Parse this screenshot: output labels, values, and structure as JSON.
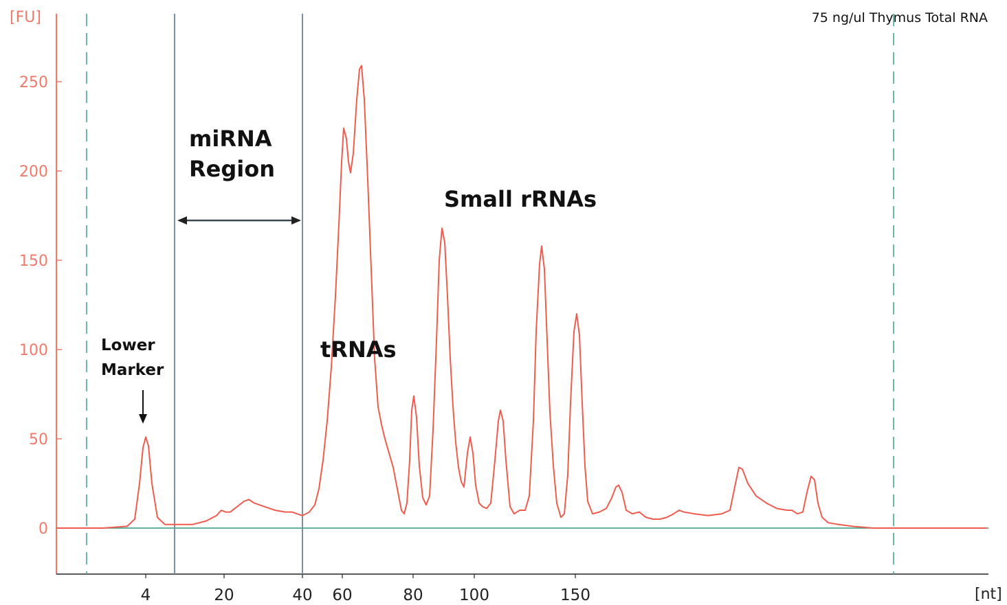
{
  "chart_data": {
    "type": "line",
    "title": "75 ng/ul Thymus Total RNA",
    "ylabel": "[FU]",
    "xlabel": "[nt]",
    "ylim": [
      -25,
      285
    ],
    "yticks": [
      0,
      50,
      100,
      150,
      200,
      250
    ],
    "xticks": [
      {
        "label": "4",
        "pos": 212
      },
      {
        "label": "20",
        "pos": 326
      },
      {
        "label": "40",
        "pos": 440
      },
      {
        "label": "60",
        "pos": 498
      },
      {
        "label": "80",
        "pos": 601
      },
      {
        "label": "100",
        "pos": 690
      },
      {
        "label": "150",
        "pos": 837
      }
    ],
    "annotations": {
      "mirna_line1": "miRNA",
      "mirna_line2": "Region",
      "small_rrnas": "Small rRNAs",
      "trnas": "tRNAs",
      "lower_marker_line1": "Lower",
      "lower_marker_line2": "Marker"
    },
    "series": [
      {
        "name": "",
        "color": "#ef5b4c",
        "points": [
          [
            82,
            0
          ],
          [
            150,
            0
          ],
          [
            185,
            1
          ],
          [
            196,
            5
          ],
          [
            203,
            25
          ],
          [
            208,
            45
          ],
          [
            212,
            51
          ],
          [
            216,
            46
          ],
          [
            221,
            25
          ],
          [
            229,
            6
          ],
          [
            240,
            2
          ],
          [
            255,
            2
          ],
          [
            280,
            2
          ],
          [
            300,
            4
          ],
          [
            315,
            7
          ],
          [
            322,
            10
          ],
          [
            328,
            9
          ],
          [
            335,
            9
          ],
          [
            345,
            12
          ],
          [
            355,
            15
          ],
          [
            362,
            16
          ],
          [
            370,
            14
          ],
          [
            385,
            12
          ],
          [
            400,
            10
          ],
          [
            415,
            9
          ],
          [
            425,
            9
          ],
          [
            432,
            8
          ],
          [
            440,
            7
          ],
          [
            450,
            9
          ],
          [
            458,
            13
          ],
          [
            464,
            22
          ],
          [
            470,
            38
          ],
          [
            476,
            60
          ],
          [
            482,
            90
          ],
          [
            488,
            130
          ],
          [
            493,
            170
          ],
          [
            497,
            205
          ],
          [
            500,
            224
          ],
          [
            504,
            218
          ],
          [
            507,
            205
          ],
          [
            510,
            199
          ],
          [
            514,
            210
          ],
          [
            519,
            240
          ],
          [
            523,
            257
          ],
          [
            526,
            259
          ],
          [
            530,
            240
          ],
          [
            535,
            195
          ],
          [
            540,
            145
          ],
          [
            545,
            95
          ],
          [
            550,
            68
          ],
          [
            555,
            58
          ],
          [
            560,
            50
          ],
          [
            566,
            42
          ],
          [
            572,
            34
          ],
          [
            578,
            22
          ],
          [
            584,
            10
          ],
          [
            588,
            8
          ],
          [
            592,
            14
          ],
          [
            596,
            38
          ],
          [
            599,
            66
          ],
          [
            602,
            74
          ],
          [
            606,
            62
          ],
          [
            610,
            35
          ],
          [
            615,
            17
          ],
          [
            620,
            13
          ],
          [
            625,
            18
          ],
          [
            630,
            55
          ],
          [
            635,
            105
          ],
          [
            639,
            150
          ],
          [
            643,
            168
          ],
          [
            647,
            160
          ],
          [
            651,
            130
          ],
          [
            655,
            95
          ],
          [
            659,
            68
          ],
          [
            663,
            48
          ],
          [
            667,
            34
          ],
          [
            671,
            26
          ],
          [
            675,
            23
          ],
          [
            680,
            42
          ],
          [
            684,
            51
          ],
          [
            688,
            42
          ],
          [
            692,
            24
          ],
          [
            697,
            14
          ],
          [
            702,
            12
          ],
          [
            708,
            11
          ],
          [
            714,
            14
          ],
          [
            720,
            38
          ],
          [
            725,
            60
          ],
          [
            728,
            66
          ],
          [
            732,
            60
          ],
          [
            736,
            38
          ],
          [
            742,
            12
          ],
          [
            748,
            8
          ],
          [
            756,
            10
          ],
          [
            764,
            10
          ],
          [
            770,
            18
          ],
          [
            776,
            60
          ],
          [
            780,
            110
          ],
          [
            785,
            148
          ],
          [
            788,
            158
          ],
          [
            792,
            145
          ],
          [
            796,
            105
          ],
          [
            800,
            65
          ],
          [
            805,
            35
          ],
          [
            810,
            14
          ],
          [
            816,
            6
          ],
          [
            821,
            8
          ],
          [
            826,
            30
          ],
          [
            830,
            70
          ],
          [
            835,
            110
          ],
          [
            839,
            120
          ],
          [
            843,
            108
          ],
          [
            847,
            70
          ],
          [
            851,
            35
          ],
          [
            855,
            15
          ],
          [
            862,
            8
          ],
          [
            872,
            9
          ],
          [
            882,
            11
          ],
          [
            890,
            17
          ],
          [
            896,
            23
          ],
          [
            900,
            24
          ],
          [
            905,
            20
          ],
          [
            911,
            10
          ],
          [
            920,
            8
          ],
          [
            930,
            9
          ],
          [
            940,
            6
          ],
          [
            950,
            5
          ],
          [
            960,
            5
          ],
          [
            970,
            6
          ],
          [
            980,
            8
          ],
          [
            988,
            10
          ],
          [
            995,
            9
          ],
          [
            1010,
            8
          ],
          [
            1030,
            7
          ],
          [
            1050,
            8
          ],
          [
            1062,
            10
          ],
          [
            1070,
            25
          ],
          [
            1075,
            34
          ],
          [
            1080,
            33
          ],
          [
            1088,
            25
          ],
          [
            1100,
            18
          ],
          [
            1115,
            14
          ],
          [
            1130,
            11
          ],
          [
            1145,
            10
          ],
          [
            1152,
            10
          ],
          [
            1160,
            8
          ],
          [
            1168,
            9
          ],
          [
            1174,
            20
          ],
          [
            1180,
            29
          ],
          [
            1185,
            27
          ],
          [
            1190,
            14
          ],
          [
            1196,
            6
          ],
          [
            1205,
            3
          ],
          [
            1220,
            2
          ],
          [
            1240,
            1
          ],
          [
            1270,
            0
          ],
          [
            1300,
            0
          ],
          [
            1350,
            0
          ],
          [
            1420,
            0
          ],
          [
            1435,
            0
          ]
        ]
      }
    ]
  }
}
